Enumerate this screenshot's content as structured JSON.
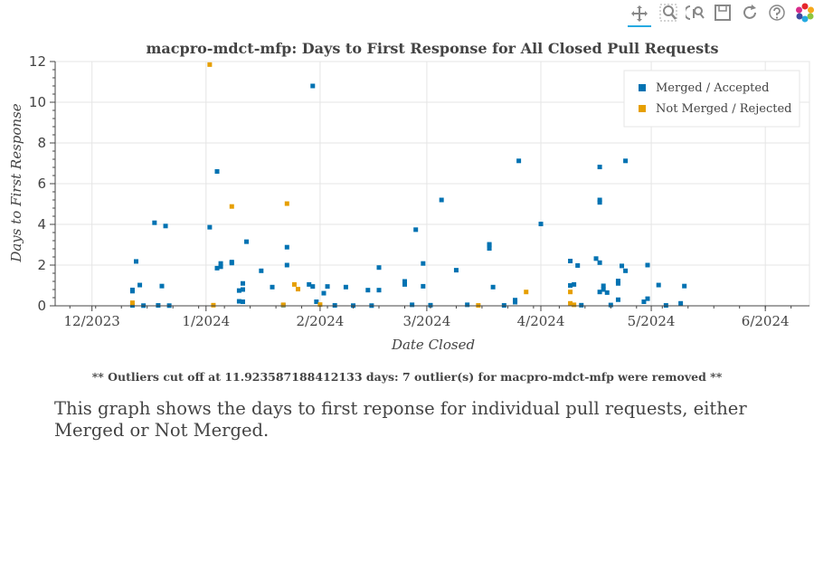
{
  "toolbar": {
    "tools": [
      {
        "name": "pan-tool-icon",
        "active": true
      },
      {
        "name": "box-zoom-tool-icon",
        "active": false
      },
      {
        "name": "wheel-zoom-tool-icon",
        "active": false
      },
      {
        "name": "save-tool-icon",
        "active": false
      },
      {
        "name": "reset-tool-icon",
        "active": false
      },
      {
        "name": "help-tool-icon",
        "active": false
      },
      {
        "name": "bokeh-logo-icon",
        "active": false
      }
    ]
  },
  "chart_data": {
    "type": "scatter",
    "title": "macpro-mdct-mfp: Days to First Response for All Closed Pull Requests",
    "xlabel": "Date Closed",
    "ylabel": "Days to First Response",
    "x_axis_type": "datetime",
    "xlim": [
      "2023-11-21",
      "2024-06-13"
    ],
    "ylim": [
      0,
      12
    ],
    "x_ticks": [
      {
        "date": "2023-12-01",
        "label": "12/2023"
      },
      {
        "date": "2024-01-01",
        "label": "1/2024"
      },
      {
        "date": "2024-02-01",
        "label": "2/2024"
      },
      {
        "date": "2024-03-01",
        "label": "3/2024"
      },
      {
        "date": "2024-04-01",
        "label": "4/2024"
      },
      {
        "date": "2024-05-01",
        "label": "5/2024"
      },
      {
        "date": "2024-06-01",
        "label": "6/2024"
      }
    ],
    "y_ticks": [
      0,
      2,
      4,
      6,
      8,
      10,
      12
    ],
    "grid": true,
    "legend_position": "top-right",
    "series": [
      {
        "name": "Merged / Accepted",
        "color": "#0072b2",
        "points": [
          [
            "2023-12-12",
            0.72
          ],
          [
            "2023-12-12",
            0.78
          ],
          [
            "2023-12-13",
            2.18
          ],
          [
            "2023-12-14",
            1.02
          ],
          [
            "2023-12-18",
            4.08
          ],
          [
            "2023-12-20",
            0.97
          ],
          [
            "2023-12-21",
            3.92
          ],
          [
            "2023-12-12",
            0.02
          ],
          [
            "2023-12-15",
            0.01
          ],
          [
            "2023-12-19",
            0.02
          ],
          [
            "2023-12-22",
            0.01
          ],
          [
            "2024-01-02",
            3.86
          ],
          [
            "2024-01-04",
            6.6
          ],
          [
            "2024-01-04",
            1.85
          ],
          [
            "2024-01-05",
            1.92
          ],
          [
            "2024-01-05",
            2.08
          ],
          [
            "2024-01-08",
            2.1
          ],
          [
            "2024-01-08",
            2.15
          ],
          [
            "2024-01-10",
            0.22
          ],
          [
            "2024-01-10",
            0.75
          ],
          [
            "2024-01-11",
            0.8
          ],
          [
            "2024-01-11",
            1.1
          ],
          [
            "2024-01-12",
            3.15
          ],
          [
            "2024-01-11",
            0.2
          ],
          [
            "2024-01-16",
            1.72
          ],
          [
            "2024-01-19",
            0.92
          ],
          [
            "2024-01-23",
            2.0
          ],
          [
            "2024-01-23",
            2.88
          ],
          [
            "2024-01-22",
            0.03
          ],
          [
            "2024-01-29",
            1.05
          ],
          [
            "2024-01-30",
            0.95
          ],
          [
            "2024-01-30",
            10.8
          ],
          [
            "2024-01-31",
            0.2
          ],
          [
            "2024-02-02",
            0.62
          ],
          [
            "2024-02-03",
            0.95
          ],
          [
            "2024-02-08",
            0.92
          ],
          [
            "2024-02-14",
            0.77
          ],
          [
            "2024-02-17",
            0.77
          ],
          [
            "2024-02-17",
            1.88
          ],
          [
            "2024-02-05",
            0.02
          ],
          [
            "2024-02-10",
            0.01
          ],
          [
            "2024-02-15",
            0.01
          ],
          [
            "2024-02-24",
            1.2
          ],
          [
            "2024-02-24",
            1.05
          ],
          [
            "2024-02-27",
            3.74
          ],
          [
            "2024-02-29",
            2.08
          ],
          [
            "2024-02-29",
            0.96
          ],
          [
            "2024-03-05",
            5.2
          ],
          [
            "2024-03-09",
            1.75
          ],
          [
            "2024-02-26",
            0.05
          ],
          [
            "2024-03-02",
            0.03
          ],
          [
            "2024-03-18",
            2.82
          ],
          [
            "2024-03-18",
            2.98
          ],
          [
            "2024-03-18",
            3.02
          ],
          [
            "2024-03-19",
            0.92
          ],
          [
            "2024-03-12",
            0.05
          ],
          [
            "2024-03-25",
            0.18
          ],
          [
            "2024-03-25",
            0.28
          ],
          [
            "2024-03-26",
            7.12
          ],
          [
            "2024-04-01",
            4.02
          ],
          [
            "2024-03-22",
            0.02
          ],
          [
            "2024-04-09",
            2.2
          ],
          [
            "2024-04-09",
            1.0
          ],
          [
            "2024-04-10",
            1.05
          ],
          [
            "2024-04-11",
            1.98
          ],
          [
            "2024-04-16",
            2.32
          ],
          [
            "2024-04-17",
            2.12
          ],
          [
            "2024-04-17",
            5.2
          ],
          [
            "2024-04-17",
            5.08
          ],
          [
            "2024-04-17",
            6.82
          ],
          [
            "2024-04-17",
            0.68
          ],
          [
            "2024-04-18",
            0.98
          ],
          [
            "2024-04-18",
            0.8
          ],
          [
            "2024-04-19",
            0.65
          ],
          [
            "2024-04-22",
            1.1
          ],
          [
            "2024-04-22",
            1.22
          ],
          [
            "2024-04-23",
            1.96
          ],
          [
            "2024-04-24",
            7.12
          ],
          [
            "2024-04-24",
            1.72
          ],
          [
            "2024-04-22",
            0.3
          ],
          [
            "2024-04-30",
            2.0
          ],
          [
            "2024-04-30",
            0.35
          ],
          [
            "2024-04-29",
            0.2
          ],
          [
            "2024-05-03",
            1.02
          ],
          [
            "2024-05-09",
            0.12
          ],
          [
            "2024-05-10",
            0.97
          ],
          [
            "2024-04-12",
            0.03
          ],
          [
            "2024-04-20",
            0.04
          ],
          [
            "2024-05-05",
            0.02
          ]
        ]
      },
      {
        "name": "Not Merged / Rejected",
        "color": "#e69f00",
        "points": [
          [
            "2023-12-12",
            0.15
          ],
          [
            "2024-01-02",
            11.85
          ],
          [
            "2024-01-08",
            4.88
          ],
          [
            "2024-01-23",
            5.02
          ],
          [
            "2024-01-25",
            1.05
          ],
          [
            "2024-01-26",
            0.82
          ],
          [
            "2024-03-28",
            0.68
          ],
          [
            "2024-04-09",
            0.68
          ],
          [
            "2024-01-03",
            0.03
          ],
          [
            "2024-01-22",
            0.05
          ],
          [
            "2024-02-01",
            0.06
          ],
          [
            "2024-04-09",
            0.12
          ],
          [
            "2024-04-10",
            0.05
          ],
          [
            "2024-03-15",
            0.02
          ]
        ]
      }
    ]
  },
  "footnote": "** Outliers cut off at 11.923587188412133 days: 7 outlier(s) for macpro-mdct-mfp were removed **",
  "description": "This graph shows the days to first reponse for individual pull requests, either Merged or Not Merged."
}
